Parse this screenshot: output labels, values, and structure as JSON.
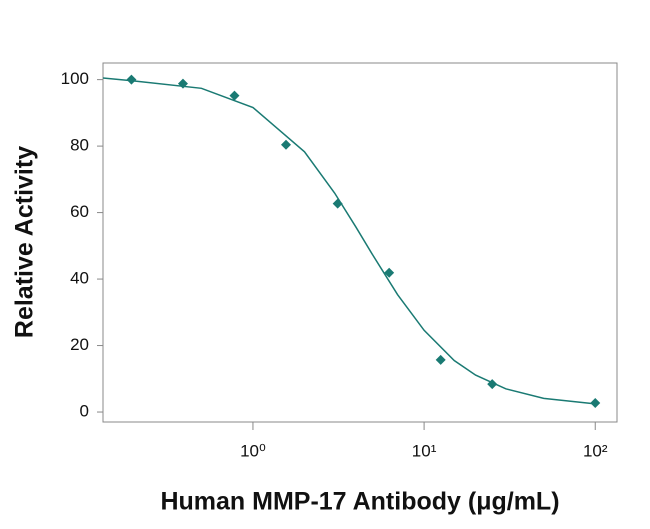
{
  "chart_data": {
    "type": "scatter",
    "x_label": "Human MMP-17 Antibody (μg/mL)",
    "y_label": "Relative Activity",
    "x_scale": "log",
    "color": "#1a7a73",
    "points": {
      "x": [
        0.195,
        0.39,
        0.78,
        1.56,
        3.125,
        6.25,
        12.5,
        25,
        100
      ],
      "y": [
        100,
        98.8,
        95.2,
        80.4,
        62.7,
        41.9,
        15.7,
        8.4,
        2.7
      ]
    },
    "curve": {
      "x": [
        0.133,
        0.2,
        0.5,
        1,
        2,
        3,
        4,
        5,
        7,
        10,
        15,
        20,
        30,
        50,
        100
      ],
      "y": [
        100.5,
        99.6,
        97.4,
        91.6,
        78.3,
        65.9,
        55.6,
        47.3,
        35.3,
        24.6,
        15.5,
        11.1,
        7.0,
        4.1,
        2.44
      ]
    },
    "xlim": [
      0.133,
      134
    ],
    "ylim": [
      -3,
      105
    ],
    "xticks": [
      {
        "value": 1,
        "label": "10⁰"
      },
      {
        "value": 10,
        "label": "10¹"
      },
      {
        "value": 100,
        "label": "10²"
      }
    ],
    "yticks": [
      0,
      20,
      40,
      60,
      80,
      100
    ]
  }
}
